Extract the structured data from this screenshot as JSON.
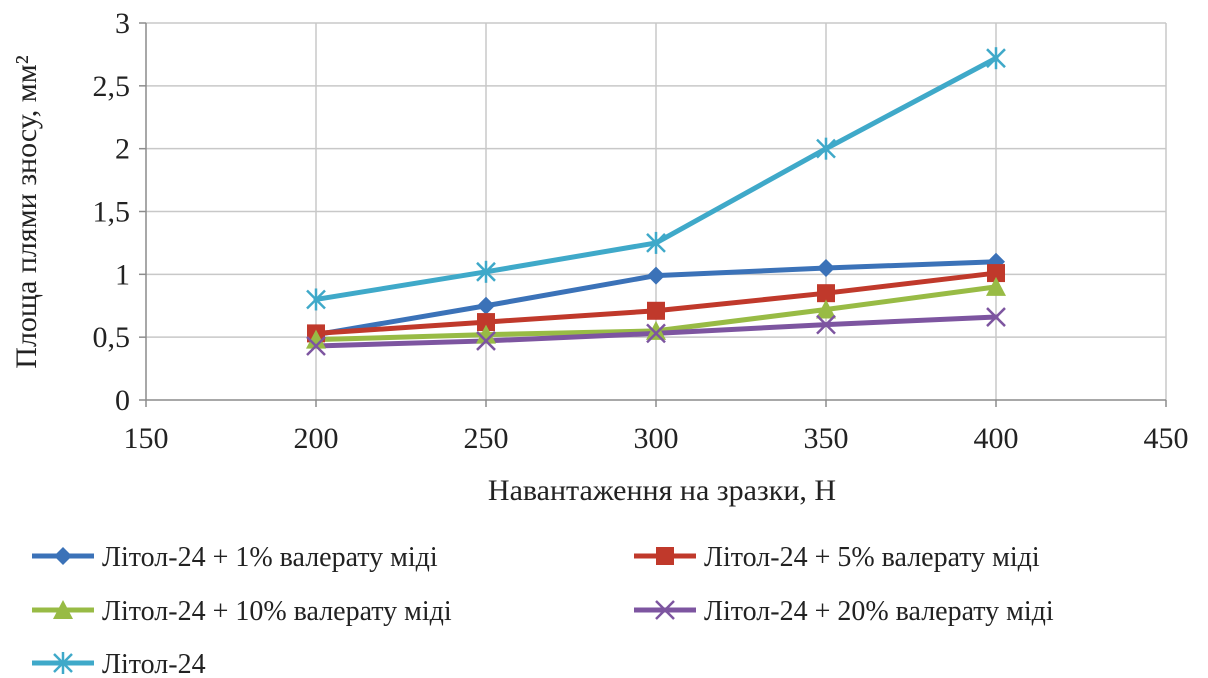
{
  "chart_data": {
    "type": "line",
    "xlabel": "Навантаження на зразки, Н",
    "ylabel": "Площа плями зносу, мм²",
    "xlim": [
      150,
      450
    ],
    "ylim": [
      0,
      3
    ],
    "x_ticks": [
      "150",
      "200",
      "250",
      "300",
      "350",
      "400",
      "450"
    ],
    "y_ticks": [
      "0",
      "0,5",
      "1",
      "1,5",
      "2",
      "2,5",
      "3"
    ],
    "x_tick_values": [
      150,
      200,
      250,
      300,
      350,
      400,
      450
    ],
    "y_tick_values": [
      0,
      0.5,
      1,
      1.5,
      2,
      2.5,
      3
    ],
    "grid": true,
    "legend_position": "bottom",
    "x": [
      200,
      250,
      300,
      350,
      400
    ],
    "series": [
      {
        "name": "Літол-24 + 1% валерату міді",
        "values": [
          0.52,
          0.75,
          0.99,
          1.05,
          1.1
        ],
        "color": "#3b72b8",
        "marker": "diamond"
      },
      {
        "name": "Літол-24 + 5% валерату міді",
        "values": [
          0.53,
          0.62,
          0.71,
          0.85,
          1.01
        ],
        "color": "#c0392b",
        "marker": "square"
      },
      {
        "name": "Літол-24 + 10% валерату міді",
        "values": [
          0.48,
          0.52,
          0.55,
          0.72,
          0.9
        ],
        "color": "#98bb45",
        "marker": "triangle"
      },
      {
        "name": "Літол-24 + 20% валерату міді",
        "values": [
          0.43,
          0.47,
          0.53,
          0.6,
          0.66
        ],
        "color": "#7d55a0",
        "marker": "x"
      },
      {
        "name": "Літол-24",
        "values": [
          0.8,
          1.02,
          1.25,
          2.0,
          2.72
        ],
        "color": "#3fa9c9",
        "marker": "star"
      }
    ]
  }
}
